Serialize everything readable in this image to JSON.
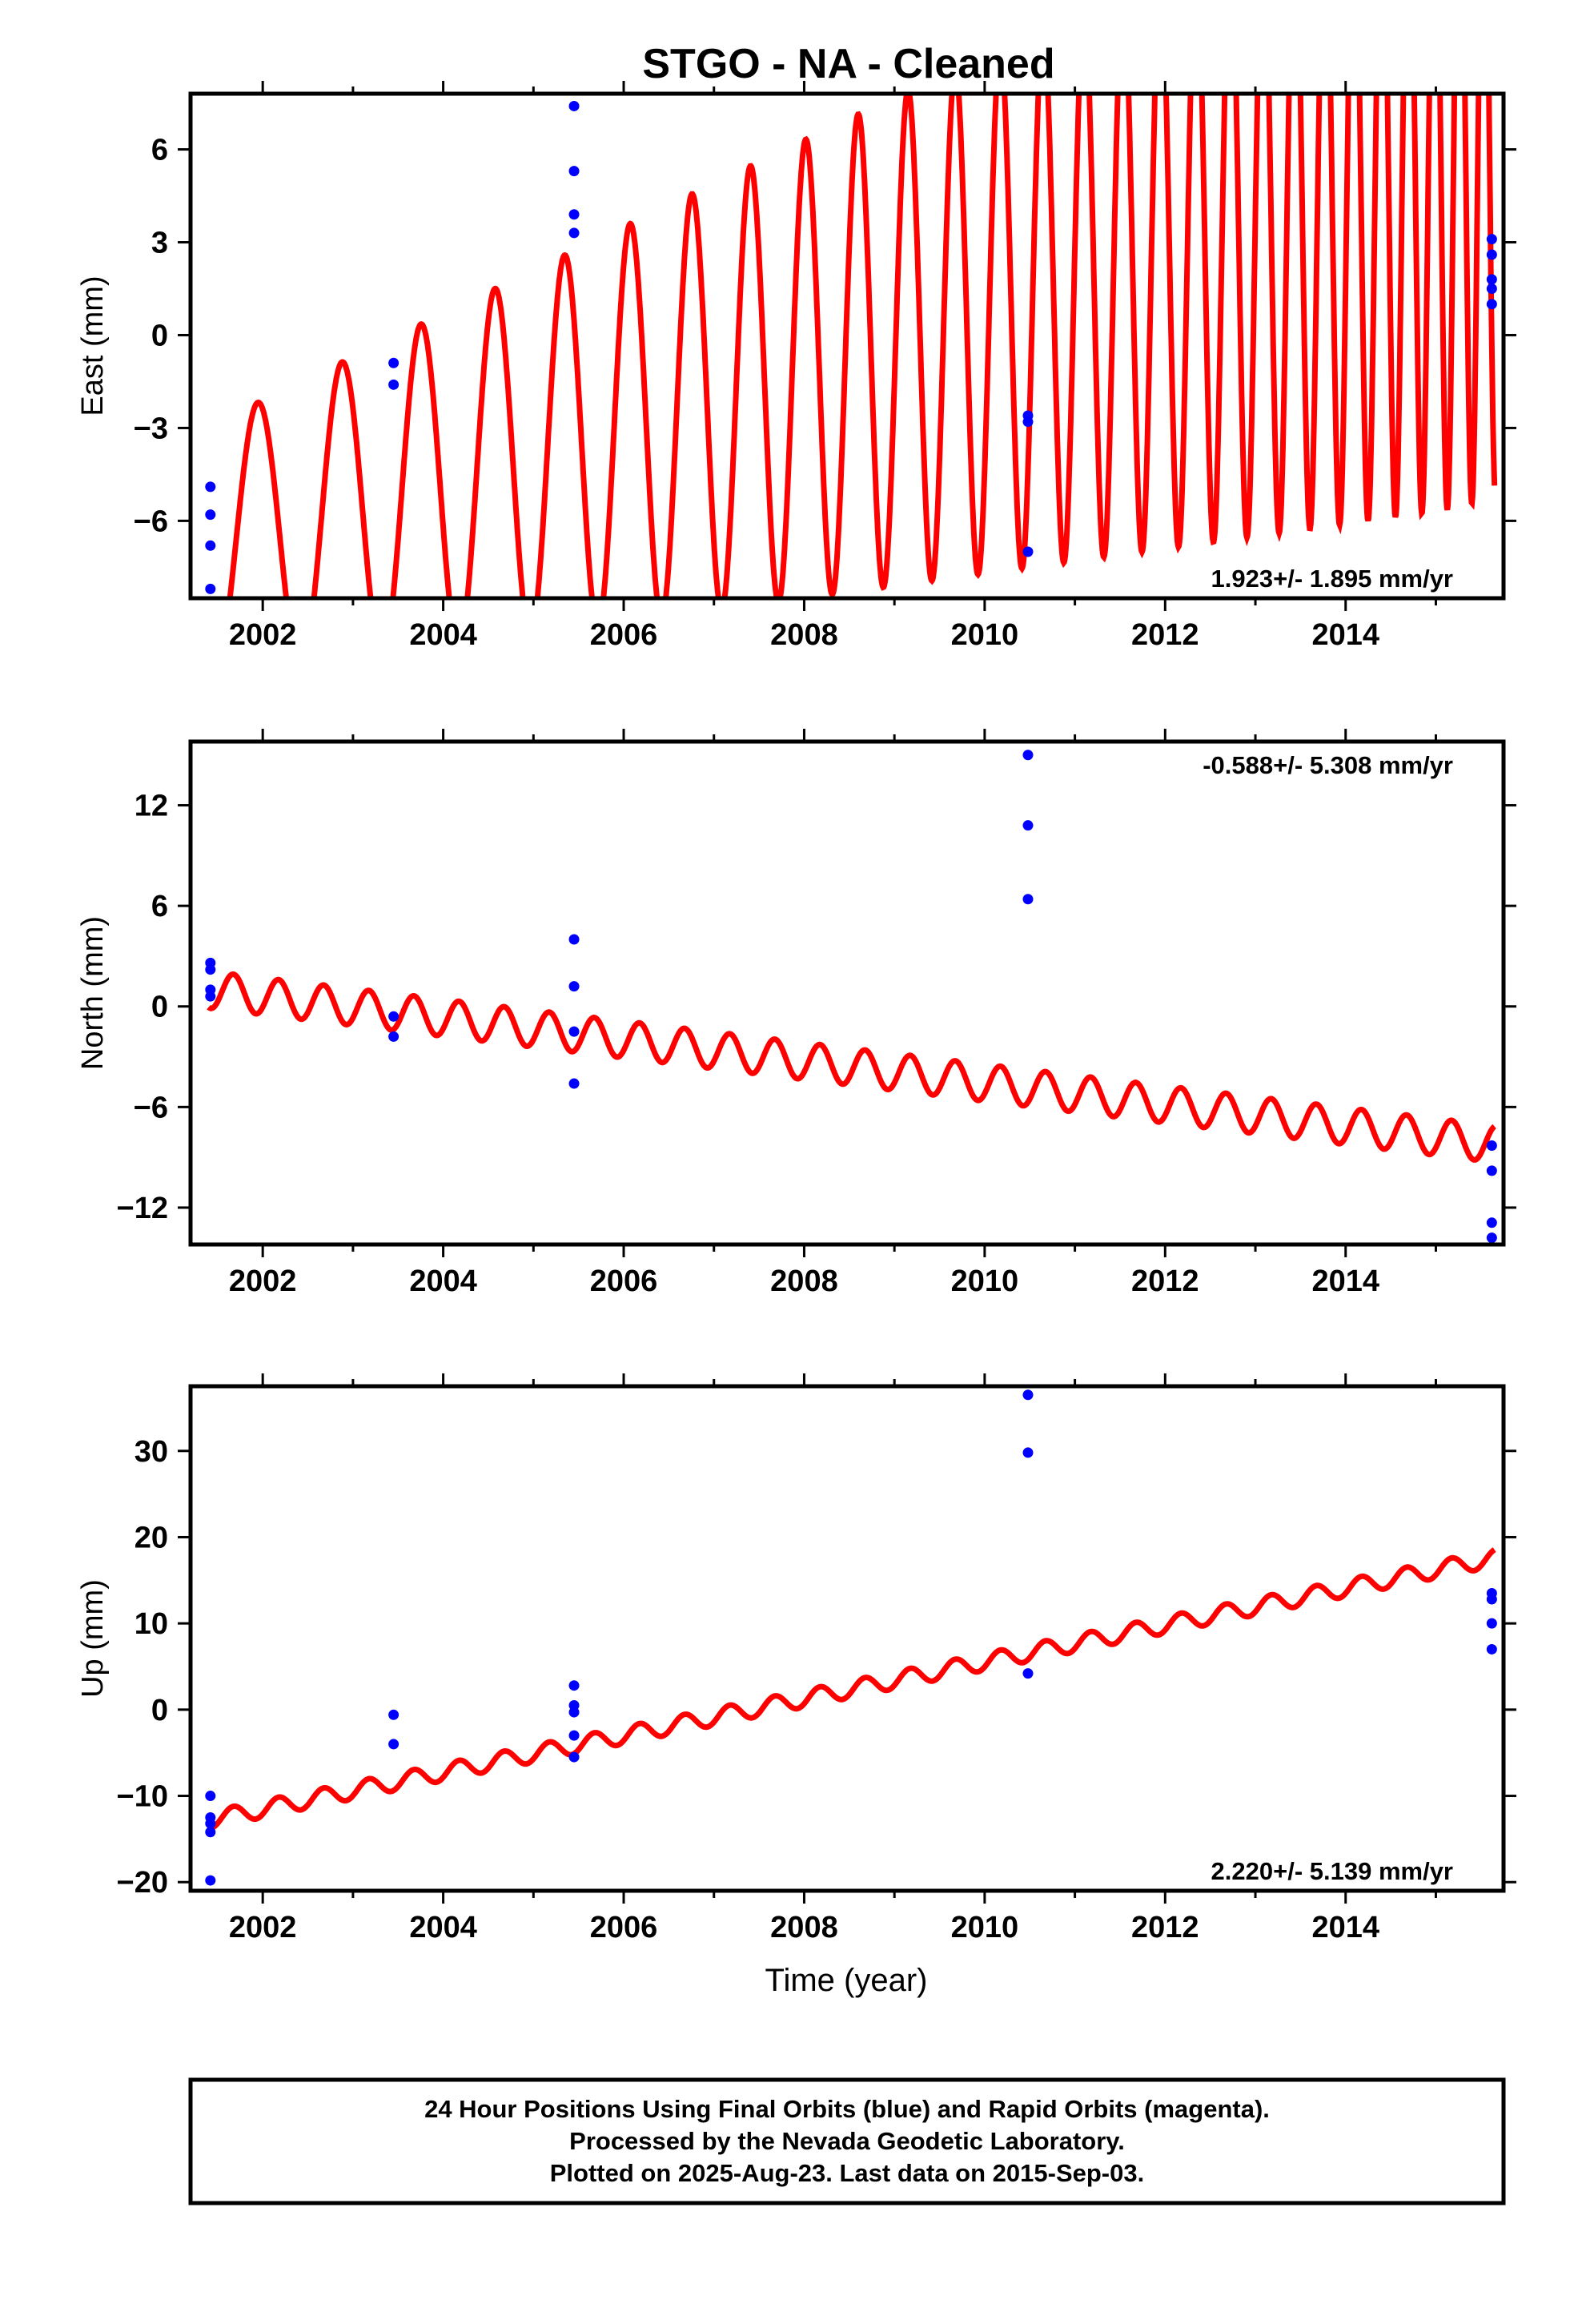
{
  "chart_data": {
    "type": "scatter",
    "title": "STGO  - NA - Cleaned",
    "xlabel": "Time (year)",
    "xlim": [
      2001.2,
      2015.75
    ],
    "x_ticks": [
      "2002",
      "2004",
      "2006",
      "2008",
      "2010",
      "2012",
      "2014"
    ],
    "series_colors": {
      "observations": "#0000ff",
      "model": "#ff0000"
    },
    "panels": [
      {
        "ylabel": "East (mm)",
        "ylim": [
          -8.5,
          7.8
        ],
        "y_ticks": [
          "6",
          "3",
          "0",
          "−3",
          "−6"
        ],
        "y_tick_values": [
          6,
          3,
          0,
          -3,
          -6
        ],
        "rate_label": "1.923+/- 1.895 mm/yr",
        "rate_position": "bottom-right",
        "model": {
          "intercept_2008": -1.1,
          "rate": 0.9,
          "amplitude_start": 4,
          "amplitude_growth": 0.5,
          "amplitude_max": 11,
          "period_start": 1.0,
          "period_end": 0.5
        },
        "observations": [
          {
            "x": 2001.42,
            "y": -4.9
          },
          {
            "x": 2001.42,
            "y": -5.8
          },
          {
            "x": 2001.42,
            "y": -6.8
          },
          {
            "x": 2001.42,
            "y": -8.2
          },
          {
            "x": 2003.45,
            "y": -0.9
          },
          {
            "x": 2003.45,
            "y": -1.6
          },
          {
            "x": 2005.45,
            "y": 7.4
          },
          {
            "x": 2005.45,
            "y": 5.3
          },
          {
            "x": 2005.45,
            "y": 3.9
          },
          {
            "x": 2005.45,
            "y": 3.3
          },
          {
            "x": 2010.48,
            "y": -2.6
          },
          {
            "x": 2010.48,
            "y": -2.8
          },
          {
            "x": 2010.48,
            "y": -7.0
          },
          {
            "x": 2015.62,
            "y": 3.1
          },
          {
            "x": 2015.62,
            "y": 2.6
          },
          {
            "x": 2015.62,
            "y": 1.8
          },
          {
            "x": 2015.62,
            "y": 1.5
          },
          {
            "x": 2015.62,
            "y": 1.0
          }
        ]
      },
      {
        "ylabel": "North (mm)",
        "ylim": [
          -14.2,
          15.8
        ],
        "y_ticks": [
          "12",
          "6",
          "0",
          "−6",
          "−12"
        ],
        "y_tick_values": [
          12,
          6,
          0,
          -6,
          -12
        ],
        "rate_label": "-0.588+/- 5.308 mm/yr",
        "rate_position": "top-right",
        "model": {
          "start": [
            2001.4,
            1.0
          ],
          "end": [
            2015.65,
            -8.2
          ],
          "amplitude": 1.1,
          "period": 0.5
        },
        "observations": [
          {
            "x": 2001.42,
            "y": 2.6
          },
          {
            "x": 2001.42,
            "y": 2.2
          },
          {
            "x": 2001.42,
            "y": 1.0
          },
          {
            "x": 2001.42,
            "y": 0.6
          },
          {
            "x": 2003.45,
            "y": -0.6
          },
          {
            "x": 2003.45,
            "y": -1.8
          },
          {
            "x": 2005.45,
            "y": 4.0
          },
          {
            "x": 2005.45,
            "y": 1.2
          },
          {
            "x": 2005.45,
            "y": -1.5
          },
          {
            "x": 2005.45,
            "y": -4.6
          },
          {
            "x": 2010.48,
            "y": 15.0
          },
          {
            "x": 2010.48,
            "y": 10.8
          },
          {
            "x": 2010.48,
            "y": 6.4
          },
          {
            "x": 2015.62,
            "y": -8.3
          },
          {
            "x": 2015.62,
            "y": -9.8
          },
          {
            "x": 2015.62,
            "y": -12.9
          },
          {
            "x": 2015.62,
            "y": -13.8
          }
        ]
      },
      {
        "ylabel": "Up (mm)",
        "ylim": [
          -21,
          37.5
        ],
        "y_ticks": [
          "30",
          "20",
          "10",
          "0",
          "−10",
          "−20"
        ],
        "y_tick_values": [
          30,
          20,
          10,
          0,
          -10,
          -20
        ],
        "rate_label": "2.220+/- 5.139 mm/yr",
        "rate_position": "bottom-right",
        "model": {
          "start": [
            2001.4,
            -12.8
          ],
          "end": [
            2015.65,
            17.6
          ],
          "amplitude": 1.0,
          "period": 0.5
        },
        "observations": [
          {
            "x": 2001.42,
            "y": -10.0
          },
          {
            "x": 2001.42,
            "y": -12.5
          },
          {
            "x": 2001.42,
            "y": -13.2
          },
          {
            "x": 2001.42,
            "y": -14.2
          },
          {
            "x": 2001.42,
            "y": -19.8
          },
          {
            "x": 2003.45,
            "y": -0.6
          },
          {
            "x": 2003.45,
            "y": -4.0
          },
          {
            "x": 2005.45,
            "y": 2.8
          },
          {
            "x": 2005.45,
            "y": 0.5
          },
          {
            "x": 2005.45,
            "y": -0.3
          },
          {
            "x": 2005.45,
            "y": -3.0
          },
          {
            "x": 2005.45,
            "y": -5.5
          },
          {
            "x": 2010.48,
            "y": 36.5
          },
          {
            "x": 2010.48,
            "y": 29.8
          },
          {
            "x": 2010.48,
            "y": 4.2
          },
          {
            "x": 2015.62,
            "y": 13.5
          },
          {
            "x": 2015.62,
            "y": 12.8
          },
          {
            "x": 2015.62,
            "y": 10.0
          },
          {
            "x": 2015.62,
            "y": 7.0
          }
        ]
      }
    ]
  },
  "footer": {
    "lines": [
      "24 Hour Positions Using Final Orbits (blue) and Rapid Orbits (magenta).",
      "Processed by the Nevada Geodetic Laboratory.",
      "Plotted on 2025-Aug-23. Last data on 2015-Sep-03."
    ]
  }
}
